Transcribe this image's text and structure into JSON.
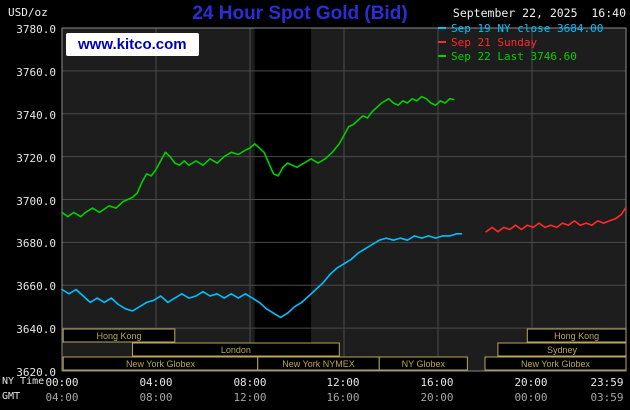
{
  "header": {
    "unit": "USD/oz",
    "title": "24 Hour Spot Gold (Bid)",
    "datetime": "September 22, 2025  16:40",
    "watermark": "www.kitco.com"
  },
  "legend": {
    "items": [
      {
        "label": "Sep 19 NY close 3684.00",
        "color": "#00c0ff"
      },
      {
        "label": "Sep 21 Sunday",
        "color": "#ff2a2a"
      },
      {
        "label": "Sep 22 Last 3746.60",
        "color": "#00d000"
      }
    ]
  },
  "axes": {
    "ny_label": "NY Time",
    "gmt_label": "GMT",
    "y_ticks": [
      "3780.0",
      "3760.0",
      "3740.0",
      "3720.0",
      "3700.0",
      "3680.0",
      "3660.0",
      "3640.0",
      "3620.0"
    ],
    "x_ny": [
      "00:00",
      "04:00",
      "08:00",
      "12:00",
      "16:00",
      "20:00",
      "23:59"
    ],
    "x_gmt": [
      "04:00",
      "08:00",
      "12:00",
      "16:00",
      "20:00",
      "00:00",
      "03:59"
    ]
  },
  "colors": {
    "title_blue": "#2d2dd5",
    "watermark_blue": "#0000bb",
    "session_tan": "#b9a75c",
    "cyan_series": "#00c0ff",
    "red_series": "#ff2a2a",
    "green_series": "#00d000"
  },
  "chart_data": {
    "type": "line",
    "title": "24 Hour Spot Gold (Bid)",
    "ylabel": "USD/oz",
    "xlabel": "NY Time / GMT",
    "ylim": [
      3620,
      3780
    ],
    "xlim": [
      0,
      24
    ],
    "grid": true,
    "legend_position": "top-right",
    "y_gridlines": [
      3640,
      3660,
      3680,
      3700,
      3720,
      3740,
      3760
    ],
    "x_gridlines_hours": [
      4,
      8,
      12,
      16,
      20
    ],
    "band_hours": {
      "start": 8.2,
      "end": 10.6,
      "color": "#000000"
    },
    "colors": {
      "plot_bg": "#1d1d1d",
      "grid": "#4a4a4a",
      "frame": "#8a8a8a",
      "session": "#b9a75c"
    },
    "series": [
      {
        "name": "Sep 19 NY close 3684.00",
        "color": "#00c0ff",
        "points": [
          [
            0,
            3658
          ],
          [
            0.3,
            3656
          ],
          [
            0.6,
            3658
          ],
          [
            0.9,
            3655
          ],
          [
            1.2,
            3652
          ],
          [
            1.5,
            3654
          ],
          [
            1.8,
            3652
          ],
          [
            2.1,
            3654
          ],
          [
            2.4,
            3651
          ],
          [
            2.7,
            3649
          ],
          [
            3,
            3648
          ],
          [
            3.3,
            3650
          ],
          [
            3.6,
            3652
          ],
          [
            3.9,
            3653
          ],
          [
            4.2,
            3655
          ],
          [
            4.5,
            3652
          ],
          [
            4.8,
            3654
          ],
          [
            5.1,
            3656
          ],
          [
            5.4,
            3654
          ],
          [
            5.7,
            3655
          ],
          [
            6,
            3657
          ],
          [
            6.3,
            3655
          ],
          [
            6.6,
            3656
          ],
          [
            6.9,
            3654
          ],
          [
            7.2,
            3656
          ],
          [
            7.5,
            3654
          ],
          [
            7.8,
            3656
          ],
          [
            8.1,
            3654
          ],
          [
            8.4,
            3652
          ],
          [
            8.7,
            3649
          ],
          [
            9,
            3647
          ],
          [
            9.3,
            3645
          ],
          [
            9.6,
            3647
          ],
          [
            9.9,
            3650
          ],
          [
            10.2,
            3652
          ],
          [
            10.5,
            3655
          ],
          [
            10.8,
            3658
          ],
          [
            11.1,
            3661
          ],
          [
            11.4,
            3665
          ],
          [
            11.7,
            3668
          ],
          [
            12,
            3670
          ],
          [
            12.3,
            3672
          ],
          [
            12.6,
            3675
          ],
          [
            12.9,
            3677
          ],
          [
            13.2,
            3679
          ],
          [
            13.5,
            3681
          ],
          [
            13.8,
            3682
          ],
          [
            14.1,
            3681
          ],
          [
            14.4,
            3682
          ],
          [
            14.7,
            3681
          ],
          [
            15,
            3683
          ],
          [
            15.3,
            3682
          ],
          [
            15.6,
            3683
          ],
          [
            15.9,
            3682
          ],
          [
            16.2,
            3683
          ],
          [
            16.5,
            3683
          ],
          [
            16.8,
            3684
          ],
          [
            17,
            3684
          ]
        ]
      },
      {
        "name": "Sep 21 Sunday",
        "color": "#ff2a2a",
        "points": [
          [
            18.05,
            3685
          ],
          [
            18.3,
            3687
          ],
          [
            18.55,
            3685
          ],
          [
            18.8,
            3687
          ],
          [
            19.05,
            3686
          ],
          [
            19.3,
            3688
          ],
          [
            19.55,
            3686
          ],
          [
            19.8,
            3688
          ],
          [
            20.05,
            3687
          ],
          [
            20.3,
            3689
          ],
          [
            20.55,
            3687
          ],
          [
            20.8,
            3688
          ],
          [
            21.05,
            3687
          ],
          [
            21.3,
            3689
          ],
          [
            21.55,
            3688
          ],
          [
            21.8,
            3690
          ],
          [
            22.05,
            3688
          ],
          [
            22.3,
            3689
          ],
          [
            22.55,
            3688
          ],
          [
            22.8,
            3690
          ],
          [
            23.05,
            3689
          ],
          [
            23.3,
            3690
          ],
          [
            23.55,
            3691
          ],
          [
            23.8,
            3693
          ],
          [
            23.98,
            3696
          ]
        ]
      },
      {
        "name": "Sep 22 Last 3746.60",
        "color": "#00d000",
        "points": [
          [
            0,
            3694
          ],
          [
            0.25,
            3692
          ],
          [
            0.5,
            3694
          ],
          [
            0.8,
            3692
          ],
          [
            1,
            3694
          ],
          [
            1.3,
            3696
          ],
          [
            1.6,
            3694
          ],
          [
            2,
            3697
          ],
          [
            2.3,
            3696
          ],
          [
            2.6,
            3699
          ],
          [
            3,
            3701
          ],
          [
            3.2,
            3703
          ],
          [
            3.4,
            3708
          ],
          [
            3.6,
            3712
          ],
          [
            3.8,
            3711
          ],
          [
            4,
            3714
          ],
          [
            4.2,
            3718
          ],
          [
            4.4,
            3722
          ],
          [
            4.6,
            3720
          ],
          [
            4.8,
            3717
          ],
          [
            5,
            3716
          ],
          [
            5.2,
            3718
          ],
          [
            5.4,
            3716
          ],
          [
            5.7,
            3718
          ],
          [
            6,
            3716
          ],
          [
            6.3,
            3719
          ],
          [
            6.6,
            3717
          ],
          [
            6.9,
            3720
          ],
          [
            7.2,
            3722
          ],
          [
            7.5,
            3721
          ],
          [
            7.8,
            3723
          ],
          [
            8,
            3724
          ],
          [
            8.2,
            3726
          ],
          [
            8.4,
            3724
          ],
          [
            8.6,
            3722
          ],
          [
            8.8,
            3717
          ],
          [
            9,
            3712
          ],
          [
            9.2,
            3711
          ],
          [
            9.4,
            3715
          ],
          [
            9.6,
            3717
          ],
          [
            9.8,
            3716
          ],
          [
            10,
            3715
          ],
          [
            10.3,
            3717
          ],
          [
            10.6,
            3719
          ],
          [
            10.9,
            3717
          ],
          [
            11.2,
            3719
          ],
          [
            11.5,
            3722
          ],
          [
            11.8,
            3726
          ],
          [
            12,
            3730
          ],
          [
            12.2,
            3734
          ],
          [
            12.4,
            3735
          ],
          [
            12.6,
            3737
          ],
          [
            12.8,
            3739
          ],
          [
            13,
            3738
          ],
          [
            13.2,
            3741
          ],
          [
            13.4,
            3743
          ],
          [
            13.6,
            3745
          ],
          [
            13.9,
            3747
          ],
          [
            14.1,
            3745
          ],
          [
            14.3,
            3744
          ],
          [
            14.5,
            3746
          ],
          [
            14.7,
            3745
          ],
          [
            14.9,
            3747
          ],
          [
            15.1,
            3746
          ],
          [
            15.3,
            3748
          ],
          [
            15.5,
            3747
          ],
          [
            15.7,
            3745
          ],
          [
            15.9,
            3744
          ],
          [
            16.1,
            3746
          ],
          [
            16.3,
            3745
          ],
          [
            16.5,
            3747
          ],
          [
            16.67,
            3746.6
          ]
        ]
      }
    ],
    "sessions": [
      {
        "row": 0,
        "start": 0.05,
        "end": 4.8,
        "label": "Hong Kong"
      },
      {
        "row": 0,
        "start": 19.8,
        "end": 24,
        "label": "Hong Kong"
      },
      {
        "row": 1,
        "start": 3.0,
        "end": 11.8,
        "label": "London"
      },
      {
        "row": 1,
        "start": 18.55,
        "end": 24,
        "label": "Sydney"
      },
      {
        "row": 2,
        "start": 0.05,
        "end": 8.33,
        "label": "New York Globex"
      },
      {
        "row": 2,
        "start": 8.33,
        "end": 13.5,
        "label": "New York NYMEX"
      },
      {
        "row": 2,
        "start": 13.5,
        "end": 17.25,
        "label": "NY Globex"
      },
      {
        "row": 2,
        "start": 18.0,
        "end": 24,
        "label": "New York Globex"
      }
    ]
  }
}
